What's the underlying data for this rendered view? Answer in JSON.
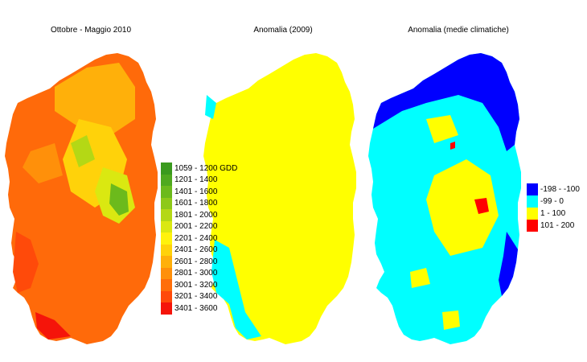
{
  "panels": [
    {
      "title": "Ottobre - Maggio 2010"
    },
    {
      "title": "Anomalia (2009)"
    },
    {
      "title": "Anomalia (medie climatiche)"
    }
  ],
  "legend_gdd": {
    "items": [
      {
        "label": "1059 - 1200 GDD",
        "color": "#3a9a1e"
      },
      {
        "label": "1201 - 1400",
        "color": "#4fa91f"
      },
      {
        "label": "1401 - 1600",
        "color": "#6cba1c"
      },
      {
        "label": "1601 - 1800",
        "color": "#8ec919"
      },
      {
        "label": "1801 - 2000",
        "color": "#b4d815"
      },
      {
        "label": "2001 - 2200",
        "color": "#dae811"
      },
      {
        "label": "2201 - 2400",
        "color": "#fff20c"
      },
      {
        "label": "2401 - 2600",
        "color": "#ffd20a"
      },
      {
        "label": "2601 - 2800",
        "color": "#ffb00a"
      },
      {
        "label": "2801 - 3000",
        "color": "#ff900a"
      },
      {
        "label": "3001 - 3200",
        "color": "#ff6e0a"
      },
      {
        "label": "3201 - 3400",
        "color": "#ff4a0a"
      },
      {
        "label": "3401 - 3600",
        "color": "#f5140a"
      }
    ]
  },
  "legend_anomaly": {
    "items": [
      {
        "label": "-198 - -100",
        "color": "#0000ff"
      },
      {
        "label": "-99 - 0",
        "color": "#00ffff"
      },
      {
        "label": "1 - 100",
        "color": "#ffff00"
      },
      {
        "label": "101 - 200",
        "color": "#ff0000"
      }
    ]
  }
}
